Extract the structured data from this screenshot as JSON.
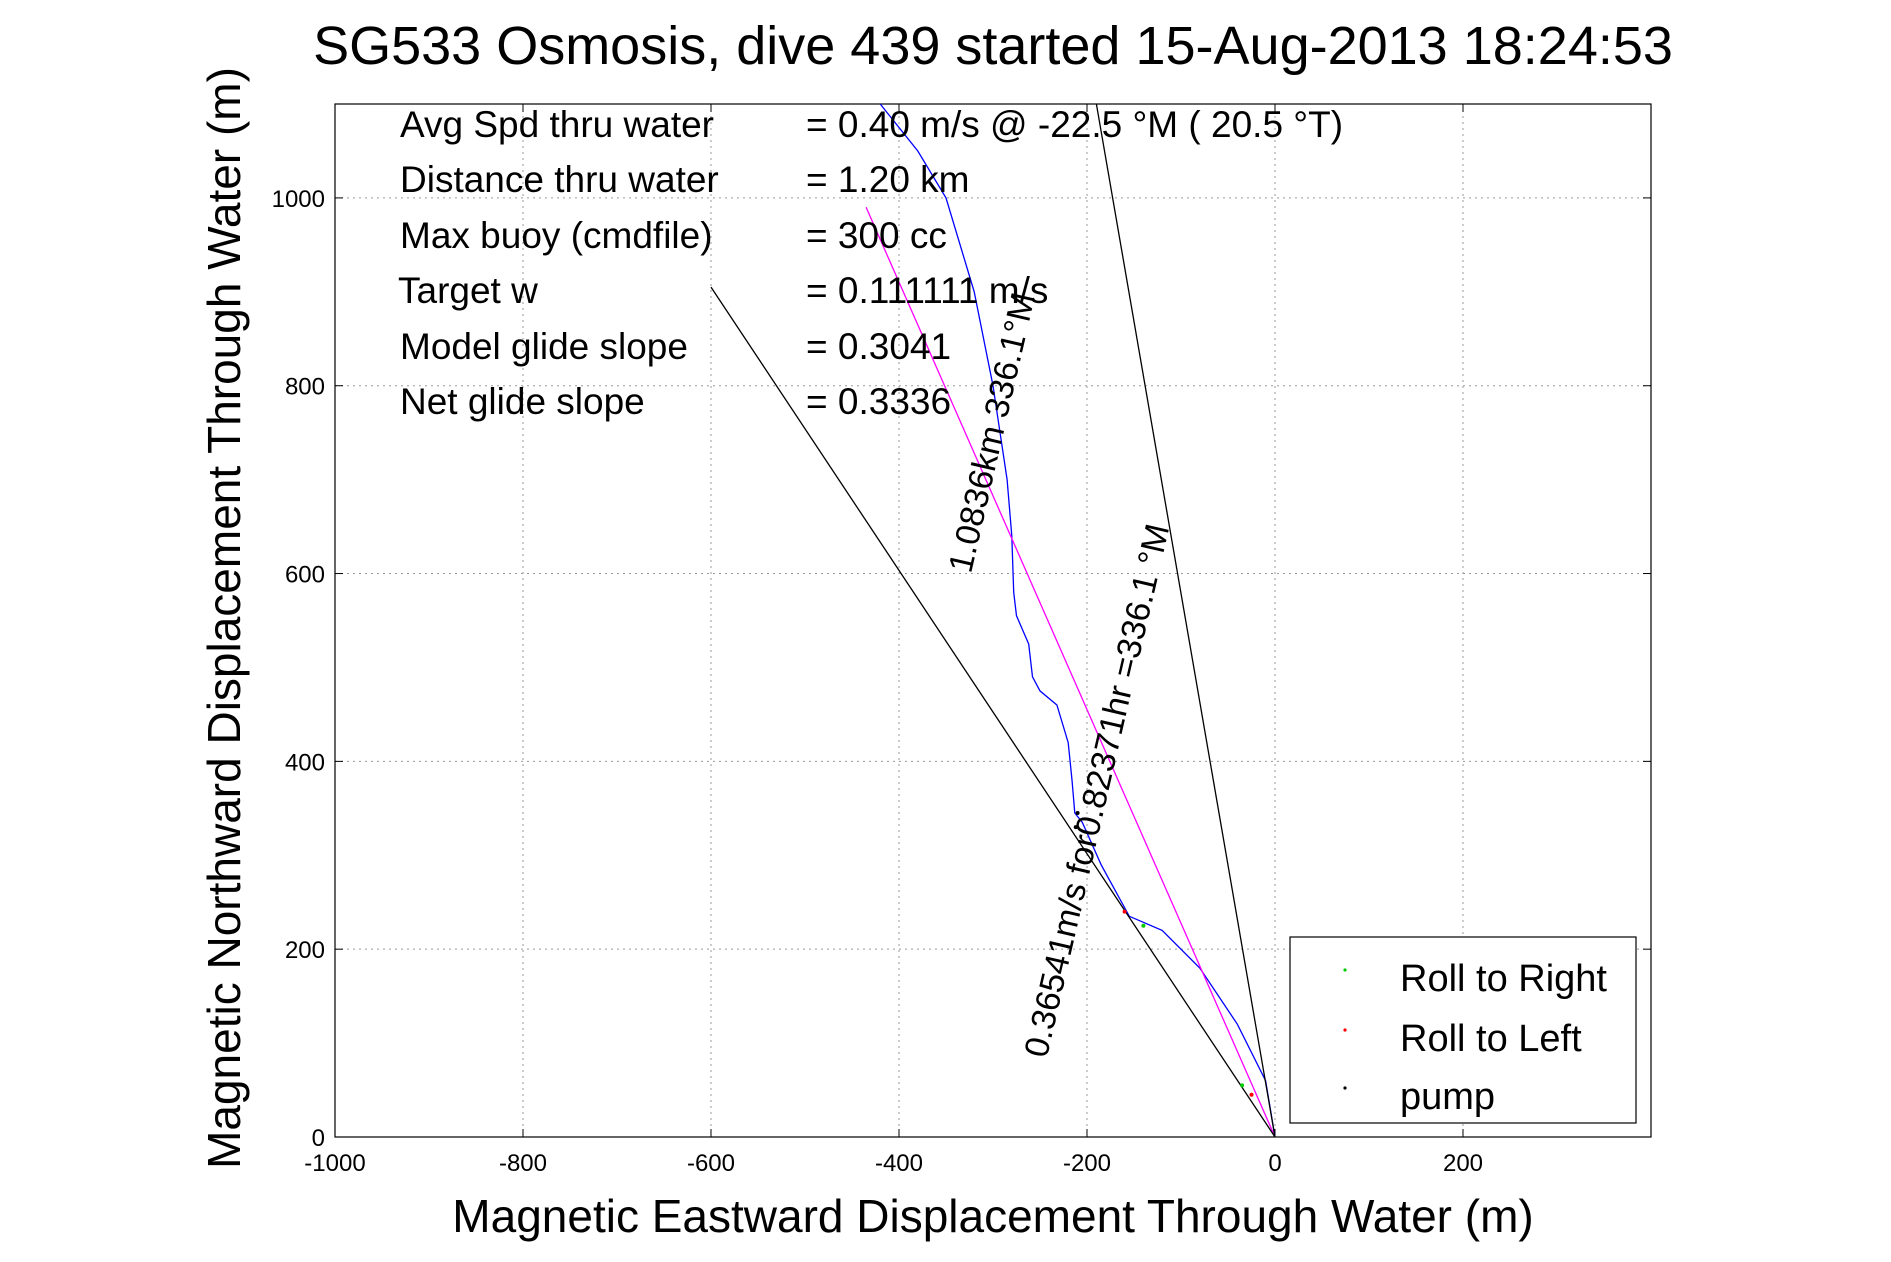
{
  "chart_data": {
    "type": "line",
    "title": "SG533 Osmosis, dive 439 started 15-Aug-2013 18:24:53",
    "xlabel": "Magnetic Eastward Displacement Through Water (m)",
    "ylabel": "Magnetic Northward Displacement Through Water (m)",
    "xlim": [
      -1000,
      400
    ],
    "ylim": [
      0,
      1100
    ],
    "xticks": [
      -1000,
      -800,
      -600,
      -400,
      -200,
      0,
      200
    ],
    "yticks": [
      0,
      200,
      400,
      600,
      800,
      1000
    ],
    "grid": true,
    "legend_position": "bottom-right",
    "legend": [
      {
        "label": "Roll to Right",
        "color": "#00cc00"
      },
      {
        "label": "Roll to Left",
        "color": "#ff0000"
      },
      {
        "label": "pump",
        "color": "#000000"
      }
    ],
    "info_lines": [
      {
        "label": "Avg Spd thru water",
        "value": "=  0.40 m/s @  -22.5 °M ( 20.5 °T)"
      },
      {
        "label": "Distance thru water",
        "value": "=  1.20 km"
      },
      {
        "label": "Max buoy (cmdfile)",
        "value": "= 300 cc"
      },
      {
        "label": "Target w",
        "value": "= 0.111111 m/s"
      },
      {
        "label": "Model glide slope",
        "value": "= 0.3041"
      },
      {
        "label": "Net glide slope",
        "value": "= 0.3336"
      }
    ],
    "annotations": [
      {
        "text": "1.0836km 336.1°M"
      },
      {
        "text": "0.36541m/s for0.82371hr =336.1 °M"
      }
    ],
    "series": [
      {
        "color": "#0000ff",
        "x": [
          0,
          -10,
          -40,
          -80,
          -120,
          -155,
          -185,
          -205,
          -213,
          -216,
          -220,
          -232,
          -250,
          -258,
          -262,
          -275,
          -278,
          -280,
          -285,
          -300,
          -320,
          -350,
          -380,
          -420,
          -460
        ],
        "y": [
          0,
          60,
          120,
          180,
          220,
          235,
          290,
          335,
          345,
          380,
          420,
          460,
          475,
          490,
          525,
          555,
          580,
          640,
          700,
          800,
          900,
          1000,
          1050,
          1100,
          1125
        ]
      },
      {
        "color": "#ff00ff",
        "x": [
          0,
          -435
        ],
        "y": [
          0,
          990
        ]
      },
      {
        "color": "#000000",
        "x": [
          0,
          -190
        ],
        "y": [
          0,
          1100
        ]
      },
      {
        "color": "#000000",
        "x": [
          0,
          -600
        ],
        "y": [
          0,
          905
        ]
      }
    ],
    "points": {
      "roll_to_right": {
        "color": "#00cc00",
        "x": [
          -35,
          -140
        ],
        "y": [
          55,
          225
        ]
      },
      "roll_to_left": {
        "color": "#ff0000",
        "x": [
          -25,
          -160
        ],
        "y": [
          45,
          240
        ]
      },
      "pump": {
        "color": "#000000",
        "x": [
          -210,
          -212
        ],
        "y": [
          345,
          330
        ]
      }
    }
  }
}
